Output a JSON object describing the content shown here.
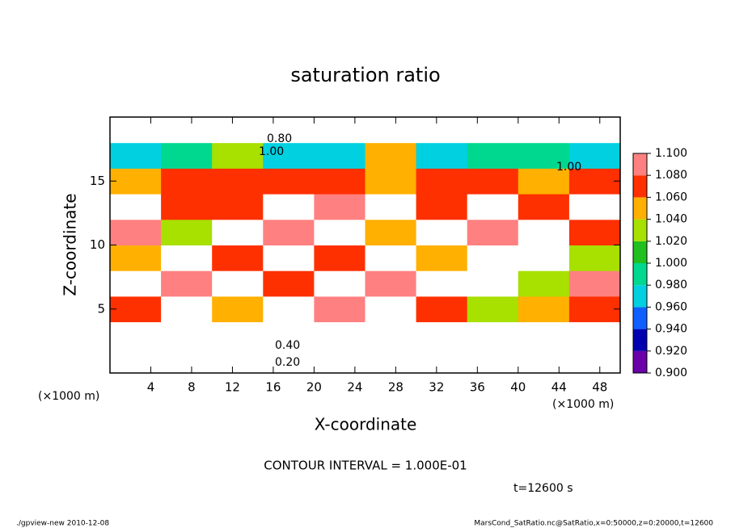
{
  "chart_data": {
    "type": "contour",
    "title": "saturation ratio",
    "xlabel": "X-coordinate",
    "ylabel": "Z-coordinate",
    "x_unit": "(×1000 m)",
    "xlim": [
      0,
      50
    ],
    "ylim": [
      0,
      20
    ],
    "xticks": [
      4,
      8,
      12,
      16,
      20,
      24,
      28,
      32,
      36,
      40,
      44,
      48
    ],
    "yticks": [
      5,
      10,
      15
    ],
    "x_edges": [
      0,
      5,
      10,
      15,
      20,
      25,
      30,
      35,
      40,
      45,
      50
    ],
    "z_edges": [
      0,
      2,
      4,
      6,
      8,
      10,
      12,
      14,
      16,
      18,
      20
    ],
    "values": [
      [
        0.2,
        0.2,
        0.2,
        0.2,
        0.2,
        0.2,
        0.2,
        0.2,
        0.2,
        0.2
      ],
      [
        0.5,
        0.5,
        0.5,
        0.5,
        0.5,
        0.5,
        0.5,
        0.5,
        0.5,
        0.5
      ],
      [
        1.06,
        1.12,
        1.04,
        1.12,
        1.08,
        1.12,
        1.06,
        1.02,
        1.04,
        1.06
      ],
      [
        1.12,
        1.08,
        1.12,
        1.06,
        1.12,
        1.08,
        1.12,
        1.12,
        1.02,
        1.08
      ],
      [
        1.04,
        1.12,
        1.07,
        1.12,
        1.06,
        1.12,
        1.05,
        1.12,
        1.1,
        1.03
      ],
      [
        1.08,
        1.02,
        1.12,
        1.08,
        1.12,
        1.04,
        1.12,
        1.08,
        1.12,
        1.06
      ],
      [
        1.12,
        1.07,
        1.06,
        1.12,
        1.08,
        1.12,
        1.07,
        1.12,
        1.06,
        1.12
      ],
      [
        1.05,
        1.06,
        1.06,
        1.07,
        1.06,
        1.05,
        1.06,
        1.06,
        1.05,
        1.06
      ],
      [
        0.96,
        0.98,
        1.02,
        0.97,
        0.96,
        1.04,
        0.97,
        0.98,
        0.99,
        0.96
      ],
      [
        0.8,
        0.8,
        0.8,
        0.8,
        0.8,
        0.8,
        0.8,
        0.8,
        0.8,
        0.8
      ]
    ],
    "colorbar": {
      "levels": [
        {
          "value": 0.9,
          "label": "0.900"
        },
        {
          "value": 0.92,
          "label": "0.920"
        },
        {
          "value": 0.94,
          "label": "0.940"
        },
        {
          "value": 0.96,
          "label": "0.960"
        },
        {
          "value": 0.98,
          "label": "0.980"
        },
        {
          "value": 1.0,
          "label": "1.000"
        },
        {
          "value": 1.02,
          "label": "1.020"
        },
        {
          "value": 1.04,
          "label": "1.040"
        },
        {
          "value": 1.06,
          "label": "1.060"
        },
        {
          "value": 1.08,
          "label": "1.080"
        },
        {
          "value": 1.1,
          "label": "1.100"
        }
      ],
      "colors": [
        "#6a00a8",
        "#0000b0",
        "#1060ff",
        "#00d0e0",
        "#00d890",
        "#20c020",
        "#a8e000",
        "#ffb000",
        "#ff3000",
        "#ff8080"
      ]
    },
    "contour_labels": [
      "0.80",
      "1.00",
      "1.00",
      "0.40",
      "0.20"
    ],
    "contour_interval": "CONTOUR INTERVAL = 1.000E-01",
    "time": "t=12600 s",
    "footer_left": "./gpview-new  2010-12-08",
    "footer_right": "MarsCond_SatRatio.nc@SatRatio,x=0:50000,z=0:20000,t=12600"
  }
}
